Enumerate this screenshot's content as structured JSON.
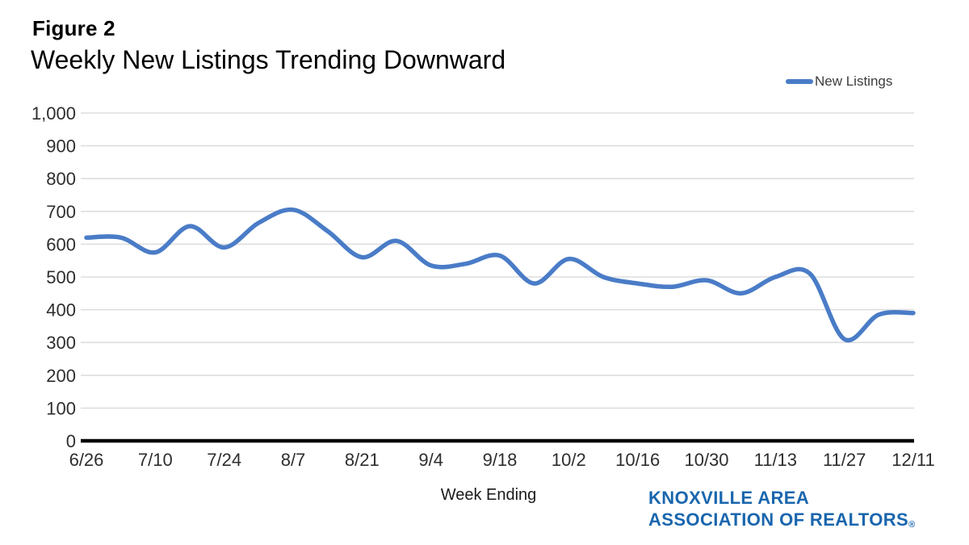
{
  "header": {
    "title": "Figure 2",
    "subtitle": "Weekly New Listings Trending Downward"
  },
  "legend": {
    "label": "New Listings"
  },
  "x_axis_title": "Week Ending",
  "logo": {
    "line1": "KNOXVILLE AREA",
    "line2": "ASSOCIATION OF REALTORS",
    "registered_mark": "®"
  },
  "colors": {
    "line": "#4a7cc7",
    "grid": "#dedede",
    "axis": "#000000",
    "tick_text": "#2e2e2e",
    "logo_blue": "#1a66ae"
  },
  "chart_data": {
    "type": "line",
    "title": "Weekly New Listings Trending Downward",
    "xlabel": "Week Ending",
    "ylabel": "",
    "x": [
      "6/26",
      "7/3",
      "7/10",
      "7/17",
      "7/24",
      "7/31",
      "8/7",
      "8/14",
      "8/21",
      "8/28",
      "9/4",
      "9/11",
      "9/18",
      "9/25",
      "10/2",
      "10/9",
      "10/16",
      "10/23",
      "10/30",
      "11/6",
      "11/13",
      "11/20",
      "11/27",
      "12/4",
      "12/11"
    ],
    "series": [
      {
        "name": "New Listings",
        "values": [
          620,
          620,
          575,
          655,
          590,
          665,
          705,
          640,
          560,
          610,
          535,
          540,
          565,
          480,
          555,
          500,
          480,
          470,
          490,
          450,
          500,
          510,
          310,
          385,
          390
        ]
      }
    ],
    "x_tick_labels": [
      "6/26",
      "7/10",
      "7/24",
      "8/7",
      "8/21",
      "9/4",
      "9/18",
      "10/2",
      "10/16",
      "10/30",
      "11/13",
      "11/27",
      "12/11"
    ],
    "y_ticks": [
      0,
      100,
      200,
      300,
      400,
      500,
      600,
      700,
      800,
      900,
      1000
    ],
    "y_tick_labels": [
      "0",
      "100",
      "200",
      "300",
      "400",
      "500",
      "600",
      "700",
      "800",
      "900",
      "1,000"
    ],
    "ylim": [
      0,
      1000
    ],
    "grid": true,
    "legend_position": "top-right",
    "line_smooth": true
  }
}
